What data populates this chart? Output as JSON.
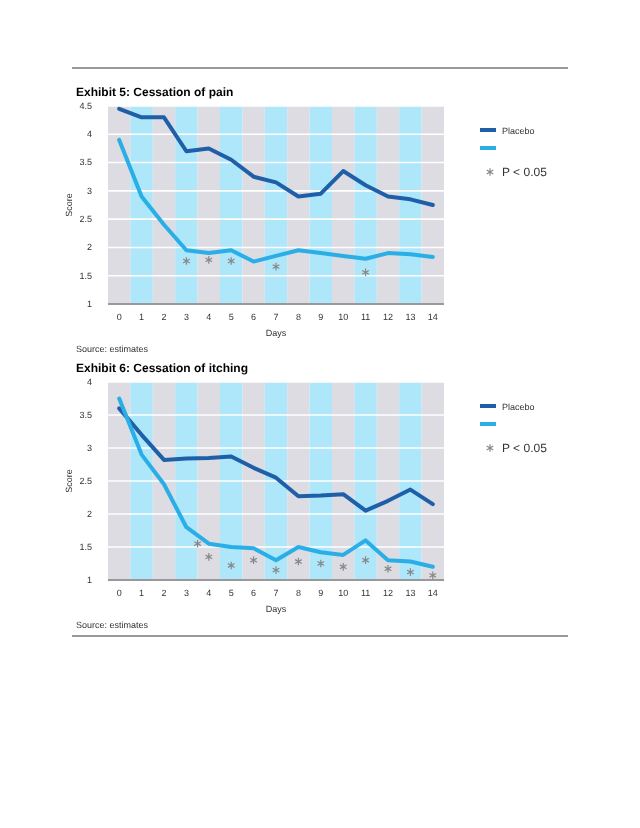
{
  "chart_data": [
    {
      "type": "line",
      "title": "Exhibit 5: Cessation of pain",
      "xlabel": "Days",
      "ylabel": "Score",
      "xlim": [
        -0.5,
        14.5
      ],
      "xticks": [
        0,
        1,
        2,
        3,
        4,
        5,
        6,
        7,
        8,
        9,
        10,
        11,
        12,
        13,
        14
      ],
      "ylim": [
        1,
        4.5
      ],
      "yticks": [
        1,
        1.5,
        2,
        2.5,
        3,
        3.5,
        4,
        4.5
      ],
      "grid": "y",
      "legend": "right",
      "annotations": [
        "Source: estimates"
      ],
      "series": [
        {
          "name": "Placebo",
          "color": "#1f5fa8",
          "x": [
            0,
            1,
            2,
            3,
            4,
            5,
            6,
            7,
            8,
            9,
            10,
            11,
            12,
            13,
            14
          ],
          "values": [
            4.45,
            4.3,
            4.3,
            3.7,
            3.75,
            3.55,
            3.25,
            3.15,
            2.9,
            2.95,
            3.35,
            3.1,
            2.9,
            2.85,
            2.75
          ]
        },
        {
          "color": "#29aee6",
          "x": [
            0,
            1,
            2,
            3,
            4,
            5,
            6,
            7,
            8,
            9,
            10,
            11,
            12,
            13,
            14
          ],
          "values": [
            3.9,
            2.9,
            2.4,
            1.95,
            1.9,
            1.95,
            1.75,
            1.85,
            1.95,
            1.9,
            1.85,
            1.8,
            1.9,
            1.88,
            1.83
          ]
        },
        {
          "name": "P < 0.05",
          "type": "scatter",
          "marker": "cross",
          "color": "#888888",
          "x": [
            3,
            4,
            5,
            7,
            11
          ],
          "values": [
            1.76,
            1.78,
            1.76,
            1.66,
            1.56
          ]
        }
      ],
      "bands": [
        {
          "axis": "x",
          "from": -0.5,
          "to": 0.5,
          "color": "#dcdce2"
        },
        {
          "axis": "x",
          "from": 0.5,
          "to": 1.5,
          "color": "#aee6fa"
        },
        {
          "axis": "x",
          "from": 1.5,
          "to": 2.5,
          "color": "#dcdce2"
        },
        {
          "axis": "x",
          "from": 2.5,
          "to": 3.5,
          "color": "#aee6fa"
        },
        {
          "axis": "x",
          "from": 3.5,
          "to": 4.5,
          "color": "#dcdce2"
        },
        {
          "axis": "x",
          "from": 4.5,
          "to": 5.5,
          "color": "#aee6fa"
        },
        {
          "axis": "x",
          "from": 5.5,
          "to": 6.5,
          "color": "#dcdce2"
        },
        {
          "axis": "x",
          "from": 6.5,
          "to": 7.5,
          "color": "#aee6fa"
        },
        {
          "axis": "x",
          "from": 7.5,
          "to": 8.5,
          "color": "#dcdce2"
        },
        {
          "axis": "x",
          "from": 8.5,
          "to": 9.5,
          "color": "#aee6fa"
        },
        {
          "axis": "x",
          "from": 9.5,
          "to": 10.5,
          "color": "#dcdce2"
        },
        {
          "axis": "x",
          "from": 10.5,
          "to": 11.5,
          "color": "#aee6fa"
        },
        {
          "axis": "x",
          "from": 11.5,
          "to": 12.5,
          "color": "#dcdce2"
        },
        {
          "axis": "x",
          "from": 12.5,
          "to": 13.5,
          "color": "#aee6fa"
        },
        {
          "axis": "x",
          "from": 13.5,
          "to": 14.5,
          "color": "#dcdce2"
        }
      ]
    },
    {
      "type": "line",
      "title": "Exhibit 6: Cessation of itching",
      "xlabel": "Days",
      "ylabel": "Score",
      "xlim": [
        -0.5,
        14.5
      ],
      "xticks": [
        0,
        1,
        2,
        3,
        4,
        5,
        6,
        7,
        8,
        9,
        10,
        11,
        12,
        13,
        14
      ],
      "ylim": [
        1,
        4
      ],
      "yticks": [
        1,
        1.5,
        2,
        2.5,
        3,
        3.5,
        4
      ],
      "grid": "y",
      "legend": "right",
      "annotations": [
        "Source: estimates"
      ],
      "series": [
        {
          "name": "Placebo",
          "color": "#1f5fa8",
          "x": [
            0,
            1,
            2,
            3,
            4,
            5,
            6,
            7,
            8,
            9,
            10,
            11,
            12,
            13,
            14
          ],
          "values": [
            3.6,
            3.2,
            2.82,
            2.84,
            2.85,
            2.87,
            2.7,
            2.55,
            2.27,
            2.28,
            2.3,
            2.05,
            2.2,
            2.37,
            2.15
          ]
        },
        {
          "color": "#29aee6",
          "x": [
            0,
            1,
            2,
            3,
            4,
            5,
            6,
            7,
            8,
            9,
            10,
            11,
            12,
            13,
            14
          ],
          "values": [
            3.75,
            2.9,
            2.45,
            1.8,
            1.55,
            1.5,
            1.48,
            1.3,
            1.5,
            1.42,
            1.38,
            1.6,
            1.3,
            1.28,
            1.2
          ]
        },
        {
          "name": "P < 0.05",
          "type": "scatter",
          "marker": "cross",
          "color": "#888888",
          "x": [
            3.5,
            4,
            5,
            6,
            7,
            8,
            9,
            10,
            11,
            12,
            13,
            14
          ],
          "values": [
            1.55,
            1.35,
            1.22,
            1.3,
            1.15,
            1.28,
            1.25,
            1.2,
            1.3,
            1.17,
            1.12,
            1.07
          ]
        }
      ],
      "bands": [
        {
          "axis": "x",
          "from": -0.5,
          "to": 0.5,
          "color": "#dcdce2"
        },
        {
          "axis": "x",
          "from": 0.5,
          "to": 1.5,
          "color": "#aee6fa"
        },
        {
          "axis": "x",
          "from": 1.5,
          "to": 2.5,
          "color": "#dcdce2"
        },
        {
          "axis": "x",
          "from": 2.5,
          "to": 3.5,
          "color": "#aee6fa"
        },
        {
          "axis": "x",
          "from": 3.5,
          "to": 4.5,
          "color": "#dcdce2"
        },
        {
          "axis": "x",
          "from": 4.5,
          "to": 5.5,
          "color": "#aee6fa"
        },
        {
          "axis": "x",
          "from": 5.5,
          "to": 6.5,
          "color": "#dcdce2"
        },
        {
          "axis": "x",
          "from": 6.5,
          "to": 7.5,
          "color": "#aee6fa"
        },
        {
          "axis": "x",
          "from": 7.5,
          "to": 8.5,
          "color": "#dcdce2"
        },
        {
          "axis": "x",
          "from": 8.5,
          "to": 9.5,
          "color": "#aee6fa"
        },
        {
          "axis": "x",
          "from": 9.5,
          "to": 10.5,
          "color": "#dcdce2"
        },
        {
          "axis": "x",
          "from": 10.5,
          "to": 11.5,
          "color": "#aee6fa"
        },
        {
          "axis": "x",
          "from": 11.5,
          "to": 12.5,
          "color": "#dcdce2"
        },
        {
          "axis": "x",
          "from": 12.5,
          "to": 13.5,
          "color": "#aee6fa"
        },
        {
          "axis": "x",
          "from": 13.5,
          "to": 14.5,
          "color": "#dcdce2"
        }
      ]
    }
  ]
}
